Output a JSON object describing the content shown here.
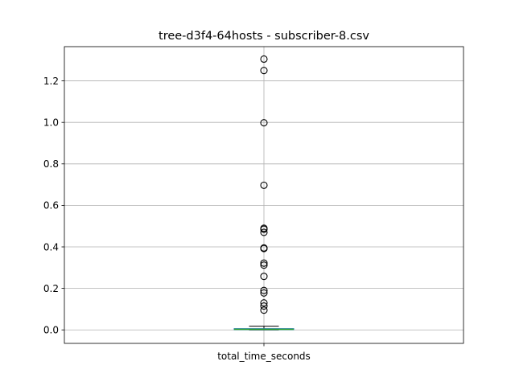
{
  "chart_data": {
    "type": "box",
    "title": "tree-d3f4-64hosts - subscriber-8.csv",
    "xlabel": "",
    "ylabel": "",
    "categories": [
      "total_time_seconds"
    ],
    "ylim": [
      -0.065,
      1.365
    ],
    "yticks": [
      "0.0",
      "0.2",
      "0.4",
      "0.6",
      "0.8",
      "1.0",
      "1.2"
    ],
    "grid": true,
    "box": {
      "whisker_low": 0.0,
      "q1": 0.001,
      "median": 0.003,
      "q3": 0.006,
      "whisker_high": 0.018
    },
    "outliers": [
      1.305,
      1.25,
      0.998,
      0.697,
      0.49,
      0.485,
      0.47,
      0.395,
      0.392,
      0.322,
      0.312,
      0.258,
      0.19,
      0.178,
      0.13,
      0.115,
      0.095
    ],
    "colors": {
      "box": "#1f77b4",
      "median": "#2ca02c",
      "whisker": "#000000",
      "grid": "#b0b0b0",
      "outlier_edge": "#000000"
    }
  }
}
